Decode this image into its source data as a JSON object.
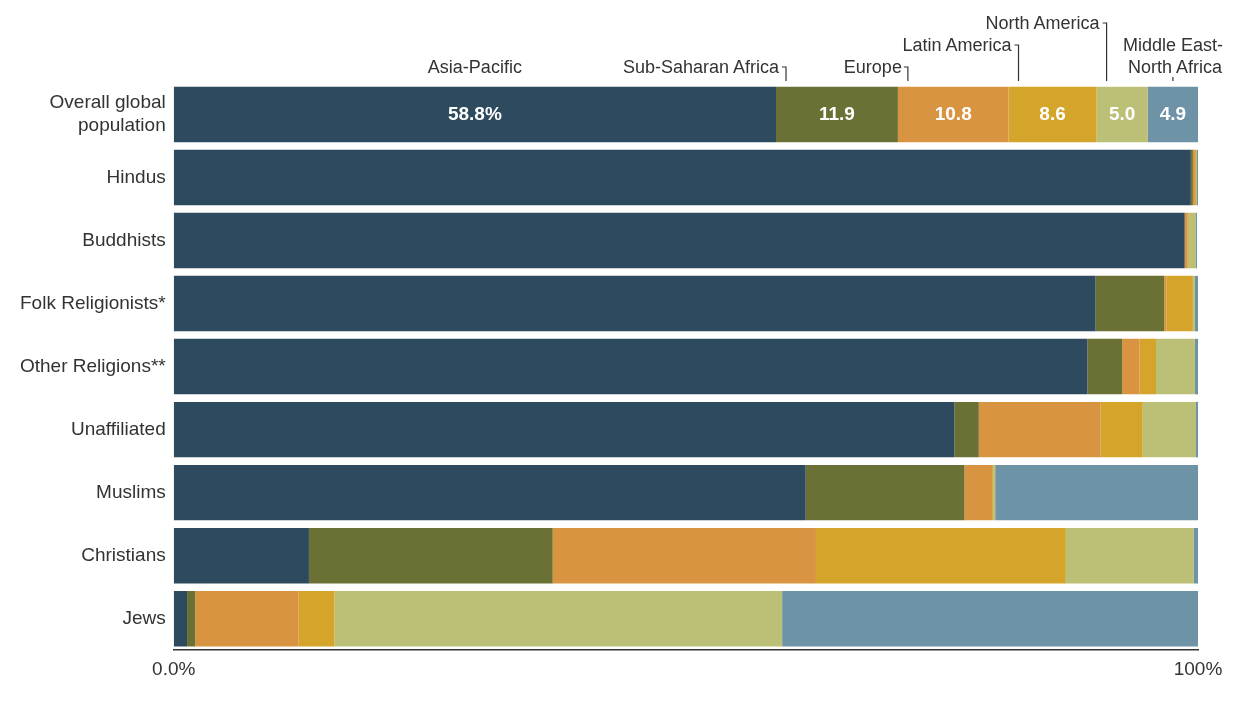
{
  "chart_data": {
    "type": "bar",
    "orientation": "horizontal",
    "stacked": true,
    "legend": false,
    "grid": false,
    "categories": [
      "Overall global\npopulation",
      "Hindus",
      "Buddhists",
      "Folk Religionists*",
      "Other Religions**",
      "Unaffiliated",
      "Muslims",
      "Christians",
      "Jews"
    ],
    "xlim": [
      0,
      100
    ],
    "xticks": [
      {
        "value": 0,
        "label": "0.0%"
      },
      {
        "value": 100,
        "label": "100%"
      }
    ],
    "series": [
      {
        "name": "Asia-Pacific",
        "color": "#2d4a5e",
        "values": [
          58.8,
          99.3,
          98.7,
          90.0,
          89.2,
          76.2,
          61.7,
          13.2,
          1.3
        ],
        "value_labels": [
          "58.8%",
          null,
          null,
          null,
          null,
          null,
          null,
          null,
          null
        ]
      },
      {
        "name": "Sub-Saharan Africa",
        "color": "#6b7134",
        "values": [
          11.9,
          0.2,
          null,
          6.7,
          3.4,
          2.4,
          15.5,
          23.8,
          0.8
        ],
        "value_labels": [
          "11.9",
          null,
          null,
          null,
          null,
          null,
          null,
          null,
          null
        ]
      },
      {
        "name": "Europe",
        "color": "#d99441",
        "values": [
          10.8,
          0.2,
          0.3,
          0.2,
          1.7,
          11.9,
          2.7,
          25.7,
          10.1
        ],
        "value_labels": [
          "10.8",
          null,
          null,
          null,
          null,
          null,
          null,
          null,
          null
        ]
      },
      {
        "name": "Latin America",
        "color": "#d4a52a",
        "values": [
          8.6,
          0.1,
          0.1,
          2.6,
          1.6,
          4.1,
          0.1,
          24.4,
          3.5
        ],
        "value_labels": [
          "8.6",
          null,
          null,
          null,
          null,
          null,
          null,
          null,
          null
        ]
      },
      {
        "name": "North America",
        "color": "#bcbf76",
        "values": [
          5.0,
          0.1,
          0.7,
          0.2,
          3.8,
          5.2,
          0.2,
          12.5,
          43.7
        ],
        "value_labels": [
          "5.0",
          null,
          null,
          null,
          null,
          null,
          null,
          null,
          null
        ]
      },
      {
        "name": "Middle East-\nNorth Africa",
        "color": "#6e92a6",
        "values": [
          4.9,
          0.1,
          0.1,
          0.3,
          0.3,
          0.2,
          19.8,
          0.4,
          40.6
        ],
        "value_labels": [
          "4.9",
          null,
          null,
          null,
          null,
          null,
          null,
          null,
          null
        ]
      }
    ]
  }
}
